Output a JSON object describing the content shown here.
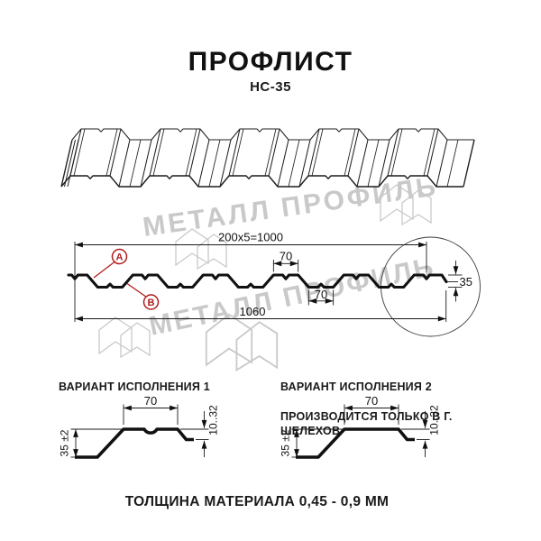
{
  "header": {
    "title": "ПРОФЛИСТ",
    "subtitle": "НС-35"
  },
  "watermark": {
    "text": "МЕТАЛЛ ПРОФИЛЬ",
    "color": "#c9c9c9"
  },
  "cross_section": {
    "dim_top": "200x5=1000",
    "dim_crest": "70",
    "dim_valley": "70",
    "dim_width": "1060",
    "dim_height": "35",
    "label_a": "A",
    "label_b": "B",
    "label_color": "#b11c1c"
  },
  "variants": [
    {
      "title": "ВАРИАНТ ИСПОЛНЕНИЯ 1",
      "subtitle": "",
      "dim_crest": "70",
      "dim_lip": "10..32",
      "dim_height": "35 ±2"
    },
    {
      "title": "ВАРИАНТ ИСПОЛНЕНИЯ 2",
      "subtitle": "ПРОИЗВОДИТСЯ ТОЛЬКО В Г. ШЕЛЕХОВ",
      "dim_crest": "70",
      "dim_lip": "10..32",
      "dim_height": "35 ±2"
    }
  ],
  "footer": {
    "text": "ТОЛЩИНА МАТЕРИАЛА 0,45 - 0,9 ММ"
  }
}
